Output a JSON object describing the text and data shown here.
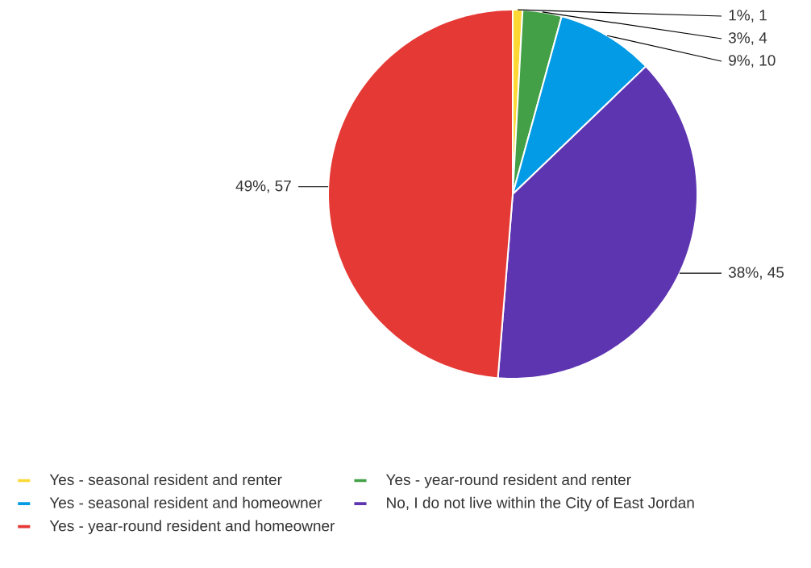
{
  "chart_data": {
    "type": "pie",
    "categories": [
      "Yes - seasonal resident and renter",
      "Yes - year-round resident and renter",
      "Yes - seasonal resident and homeowner",
      "No, I do not live within the City of East Jordan",
      "Yes - year-round resident and homeowner"
    ],
    "values": [
      1,
      4,
      10,
      45,
      57
    ],
    "colors": [
      "#fdd835",
      "#43a047",
      "#039be5",
      "#5e35b1",
      "#e53935"
    ],
    "value_labels": [
      "1%, 1",
      "3%, 4",
      "9%, 10",
      "38%, 45",
      "49%, 57"
    ],
    "legend": "bottom"
  }
}
